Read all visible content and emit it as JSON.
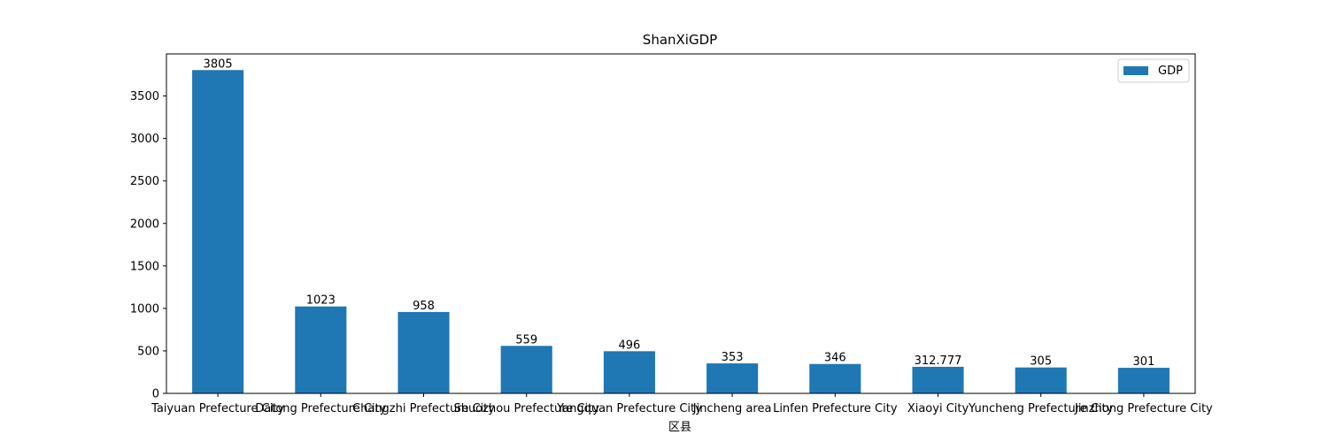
{
  "chart_data": {
    "type": "bar",
    "title": "ShanXiGDP",
    "xlabel": "区县",
    "ylabel": "",
    "categories": [
      "Taiyuan Prefecture City",
      "Datong Prefecture City",
      "Changzhi Prefecture City",
      "Shuozhou Prefecture City",
      "Yangquan Prefecture City",
      "Jincheng area",
      "Linfen Prefecture City",
      "Xiaoyi City",
      "Yuncheng Prefecture City",
      "Jinzhong Prefecture City"
    ],
    "series": [
      {
        "name": "GDP",
        "values": [
          3805,
          1023,
          958,
          559,
          496,
          353,
          346,
          312.777,
          305,
          301
        ],
        "labels": [
          "3805",
          "1023",
          "958",
          "559",
          "496",
          "353",
          "346",
          "312.777",
          "305",
          "301"
        ]
      }
    ],
    "ylim": [
      0,
      3995
    ],
    "yticks": [
      0,
      500,
      1000,
      1500,
      2000,
      2500,
      3000,
      3500
    ],
    "grid": false,
    "legend_position": "top-right",
    "bar_color": "#1f77b4"
  }
}
